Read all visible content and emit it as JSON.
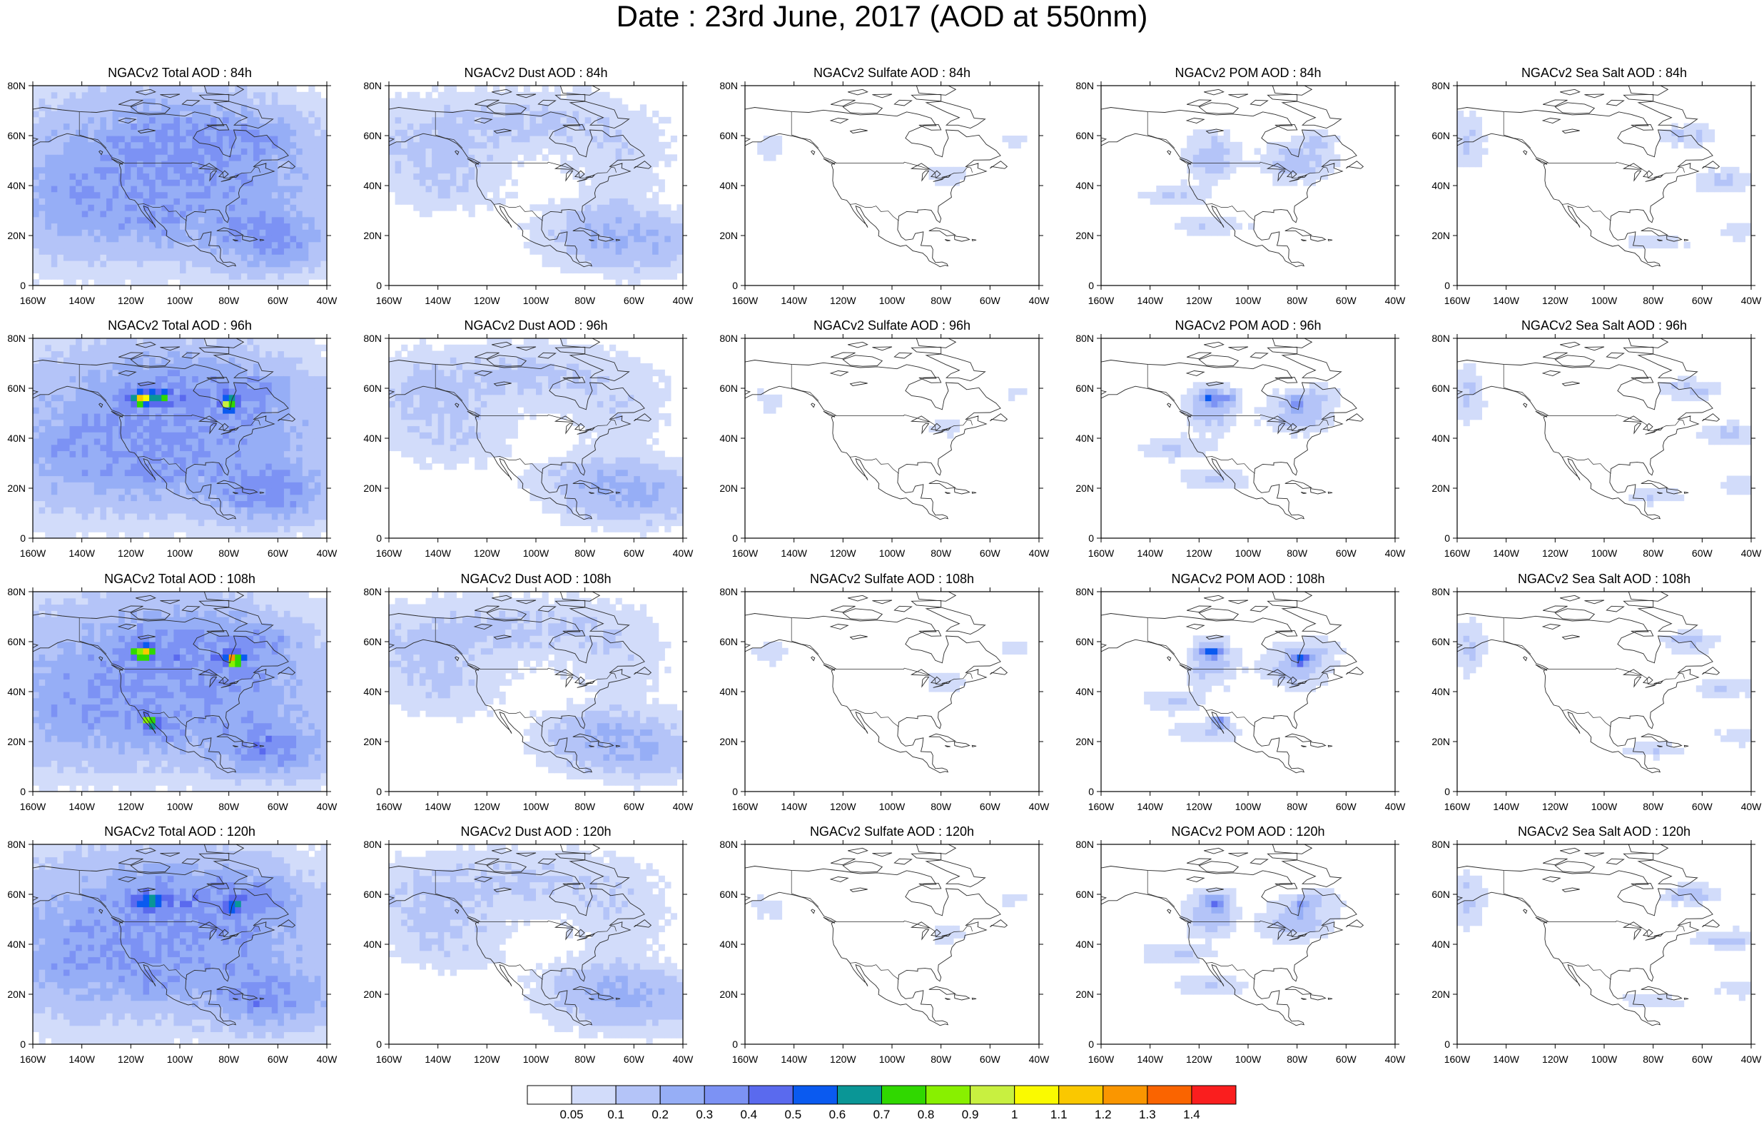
{
  "title": "Date : 23rd June, 2017 (AOD at 550nm)",
  "panels": [
    {
      "title": "NGACv2 Total AOD : 84h",
      "species": "total",
      "hour": 84
    },
    {
      "title": "NGACv2 Dust AOD : 84h",
      "species": "dust",
      "hour": 84
    },
    {
      "title": "NGACv2 Sulfate AOD : 84h",
      "species": "sulfate",
      "hour": 84
    },
    {
      "title": "NGACv2 POM AOD : 84h",
      "species": "pom",
      "hour": 84
    },
    {
      "title": "NGACv2 Sea Salt AOD : 84h",
      "species": "seasalt",
      "hour": 84
    },
    {
      "title": "NGACv2 Total AOD : 96h",
      "species": "total",
      "hour": 96
    },
    {
      "title": "NGACv2 Dust AOD : 96h",
      "species": "dust",
      "hour": 96
    },
    {
      "title": "NGACv2 Sulfate AOD : 96h",
      "species": "sulfate",
      "hour": 96
    },
    {
      "title": "NGACv2 POM AOD : 96h",
      "species": "pom",
      "hour": 96
    },
    {
      "title": "NGACv2 Sea Salt AOD : 96h",
      "species": "seasalt",
      "hour": 96
    },
    {
      "title": "NGACv2 Total AOD : 108h",
      "species": "total",
      "hour": 108
    },
    {
      "title": "NGACv2 Dust AOD : 108h",
      "species": "dust",
      "hour": 108
    },
    {
      "title": "NGACv2 Sulfate AOD : 108h",
      "species": "sulfate",
      "hour": 108
    },
    {
      "title": "NGACv2 POM AOD : 108h",
      "species": "pom",
      "hour": 108
    },
    {
      "title": "NGACv2 Sea Salt AOD : 108h",
      "species": "seasalt",
      "hour": 108
    },
    {
      "title": "NGACv2 Total AOD : 120h",
      "species": "total",
      "hour": 120
    },
    {
      "title": "NGACv2 Dust AOD : 120h",
      "species": "dust",
      "hour": 120
    },
    {
      "title": "NGACv2 Sulfate AOD : 120h",
      "species": "sulfate",
      "hour": 120
    },
    {
      "title": "NGACv2 POM AOD : 120h",
      "species": "pom",
      "hour": 120
    },
    {
      "title": "NGACv2 Sea Salt  AOD : 120h",
      "species": "seasalt",
      "hour": 120
    }
  ],
  "axes": {
    "lon_range": [
      -160,
      -40
    ],
    "lat_range": [
      0,
      80
    ],
    "lon_ticks": [
      "160W",
      "140W",
      "120W",
      "100W",
      "80W",
      "60W",
      "40W"
    ],
    "lat_ticks": [
      "0",
      "20N",
      "40N",
      "60N",
      "80N"
    ]
  },
  "colorbar": {
    "labels": [
      "0.05",
      "0.1",
      "0.2",
      "0.3",
      "0.4",
      "0.5",
      "0.6",
      "0.7",
      "0.8",
      "0.9",
      "1",
      "1.1",
      "1.2",
      "1.3",
      "1.4"
    ],
    "colors": [
      "#ffffff",
      "#d2dcfa",
      "#b4c4f8",
      "#96aef6",
      "#7c92f4",
      "#5a6aee",
      "#0a5af0",
      "#0a9696",
      "#30d800",
      "#88f000",
      "#c8f040",
      "#fafa00",
      "#fac800",
      "#fa9600",
      "#fa6400",
      "#fa1e1e"
    ]
  }
}
